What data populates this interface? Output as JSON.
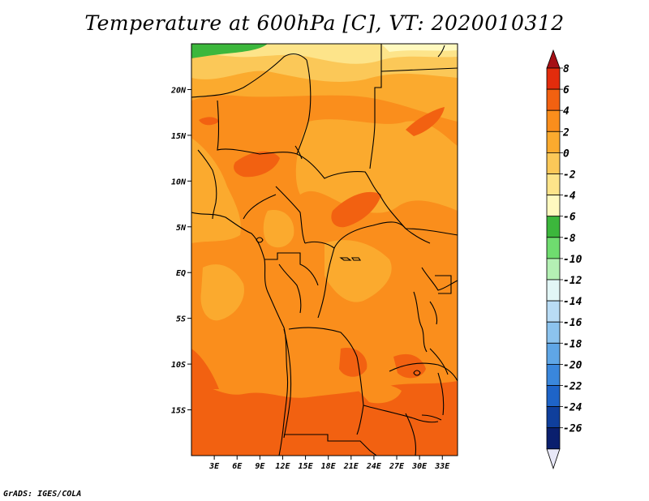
{
  "title": "Temperature at 600hPa [C], VT: 2020010312",
  "credit": "GrADS: IGES/COLA",
  "map": {
    "lon_range": [
      0,
      35
    ],
    "lat_range": [
      -20,
      25
    ],
    "lat_ticks": [
      {
        "label": "20N",
        "lat": 20
      },
      {
        "label": "15N",
        "lat": 15
      },
      {
        "label": "10N",
        "lat": 10
      },
      {
        "label": "5N",
        "lat": 5
      },
      {
        "label": "EQ",
        "lat": 0
      },
      {
        "label": "5S",
        "lat": -5
      },
      {
        "label": "10S",
        "lat": -10
      },
      {
        "label": "15S",
        "lat": -15
      }
    ],
    "lon_ticks": [
      {
        "label": "3E",
        "lon": 3
      },
      {
        "label": "6E",
        "lon": 6
      },
      {
        "label": "9E",
        "lon": 9
      },
      {
        "label": "12E",
        "lon": 12
      },
      {
        "label": "15E",
        "lon": 15
      },
      {
        "label": "18E",
        "lon": 18
      },
      {
        "label": "21E",
        "lon": 21
      },
      {
        "label": "24E",
        "lon": 24
      },
      {
        "label": "27E",
        "lon": 27
      },
      {
        "label": "30E",
        "lon": 30
      },
      {
        "label": "33E",
        "lon": 33
      }
    ]
  },
  "colorbar": {
    "labels": [
      "8",
      "6",
      "4",
      "2",
      "0",
      "-2",
      "-4",
      "-6",
      "-8",
      "-10",
      "-12",
      "-14",
      "-16",
      "-18",
      "-20",
      "-22",
      "-24",
      "-26"
    ],
    "colors": [
      "#a50f15",
      "#e32c0c",
      "#f26111",
      "#fa8e1c",
      "#fbaa2e",
      "#fbc858",
      "#fde48a",
      "#fff9bf",
      "#3cb73c",
      "#6fdc6f",
      "#b4f0b4",
      "#e2f6f6",
      "#b9dcf5",
      "#8cc3ee",
      "#5fa6e6",
      "#3a87dc",
      "#1e64c8",
      "#0f3f9c",
      "#0a1f6e",
      "#e8e8f8"
    ]
  }
}
